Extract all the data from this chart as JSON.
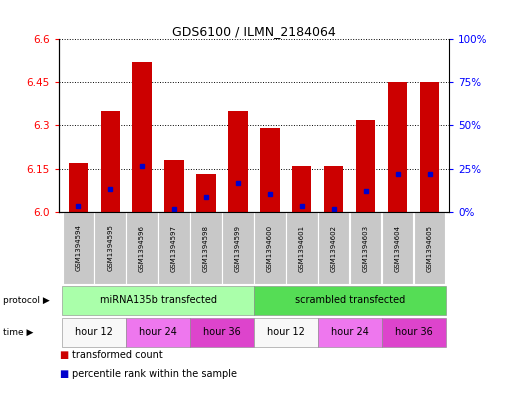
{
  "title": "GDS6100 / ILMN_2184064",
  "samples": [
    "GSM1394594",
    "GSM1394595",
    "GSM1394596",
    "GSM1394597",
    "GSM1394598",
    "GSM1394599",
    "GSM1394600",
    "GSM1394601",
    "GSM1394602",
    "GSM1394603",
    "GSM1394604",
    "GSM1394605"
  ],
  "red_values": [
    6.17,
    6.35,
    6.52,
    6.18,
    6.13,
    6.35,
    6.29,
    6.16,
    6.16,
    6.32,
    6.45,
    6.45
  ],
  "blue_values": [
    6.02,
    6.08,
    6.16,
    6.01,
    6.05,
    6.1,
    6.06,
    6.02,
    6.01,
    6.07,
    6.13,
    6.13
  ],
  "ylim": [
    6.0,
    6.6
  ],
  "yticks_left": [
    6.0,
    6.15,
    6.3,
    6.45,
    6.6
  ],
  "yticks_right_pct": [
    0,
    25,
    50,
    75,
    100
  ],
  "bar_color": "#cc0000",
  "blue_color": "#0000cc",
  "protocol_groups": [
    {
      "label": "miRNA135b transfected",
      "start": 0,
      "end": 6,
      "color": "#aaffaa"
    },
    {
      "label": "scrambled transfected",
      "start": 6,
      "end": 12,
      "color": "#55dd55"
    }
  ],
  "time_groups": [
    {
      "label": "hour 12",
      "start": 0,
      "end": 2,
      "color": "#f8f8f8"
    },
    {
      "label": "hour 24",
      "start": 2,
      "end": 4,
      "color": "#ee77ee"
    },
    {
      "label": "hour 36",
      "start": 4,
      "end": 6,
      "color": "#dd44cc"
    },
    {
      "label": "hour 12",
      "start": 6,
      "end": 8,
      "color": "#f8f8f8"
    },
    {
      "label": "hour 24",
      "start": 8,
      "end": 10,
      "color": "#ee77ee"
    },
    {
      "label": "hour 36",
      "start": 10,
      "end": 12,
      "color": "#dd44cc"
    }
  ],
  "legend_red_label": "transformed count",
  "legend_blue_label": "percentile rank within the sample",
  "bar_width": 0.6,
  "sample_box_color": "#c8c8c8",
  "grid_color": "black",
  "grid_linestyle": "dotted",
  "grid_linewidth": 0.7
}
